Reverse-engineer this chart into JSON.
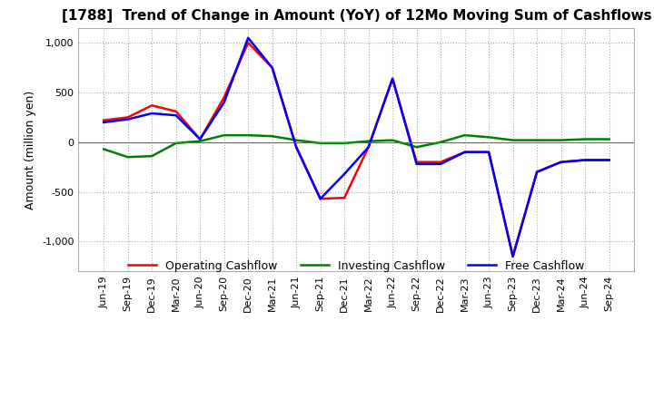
{
  "title": "[1788]  Trend of Change in Amount (YoY) of 12Mo Moving Sum of Cashflows",
  "ylabel": "Amount (million yen)",
  "ylim": [
    -1300,
    1150
  ],
  "yticks": [
    -1000,
    -500,
    0,
    500,
    1000
  ],
  "x_labels": [
    "Jun-19",
    "Sep-19",
    "Dec-19",
    "Mar-20",
    "Jun-20",
    "Sep-20",
    "Dec-20",
    "Mar-21",
    "Jun-21",
    "Sep-21",
    "Dec-21",
    "Mar-22",
    "Jun-22",
    "Sep-22",
    "Dec-22",
    "Mar-23",
    "Jun-23",
    "Sep-23",
    "Dec-23",
    "Mar-24",
    "Jun-24",
    "Sep-24"
  ],
  "operating_cashflow": [
    220,
    250,
    370,
    310,
    30,
    450,
    1000,
    750,
    -50,
    -570,
    -560,
    -50,
    640,
    -200,
    -200,
    -100,
    -100,
    -1150,
    -300,
    -200,
    -180,
    -180
  ],
  "investing_cashflow": [
    -70,
    -150,
    -140,
    -10,
    10,
    70,
    70,
    60,
    20,
    -10,
    -10,
    10,
    20,
    -50,
    0,
    70,
    50,
    20,
    20,
    20,
    30,
    30
  ],
  "free_cashflow": [
    200,
    230,
    290,
    270,
    30,
    400,
    1050,
    750,
    -50,
    -570,
    -320,
    -50,
    640,
    -220,
    -220,
    -100,
    -100,
    -1150,
    -300,
    -200,
    -180,
    -180
  ],
  "operating_color": "#ff0000",
  "investing_color": "#008000",
  "free_color": "#0000ff",
  "bg_color": "#ffffff",
  "grid_color": "#aaaaaa",
  "title_fontsize": 11,
  "legend_labels": [
    "Operating Cashflow",
    "Investing Cashflow",
    "Free Cashflow"
  ]
}
